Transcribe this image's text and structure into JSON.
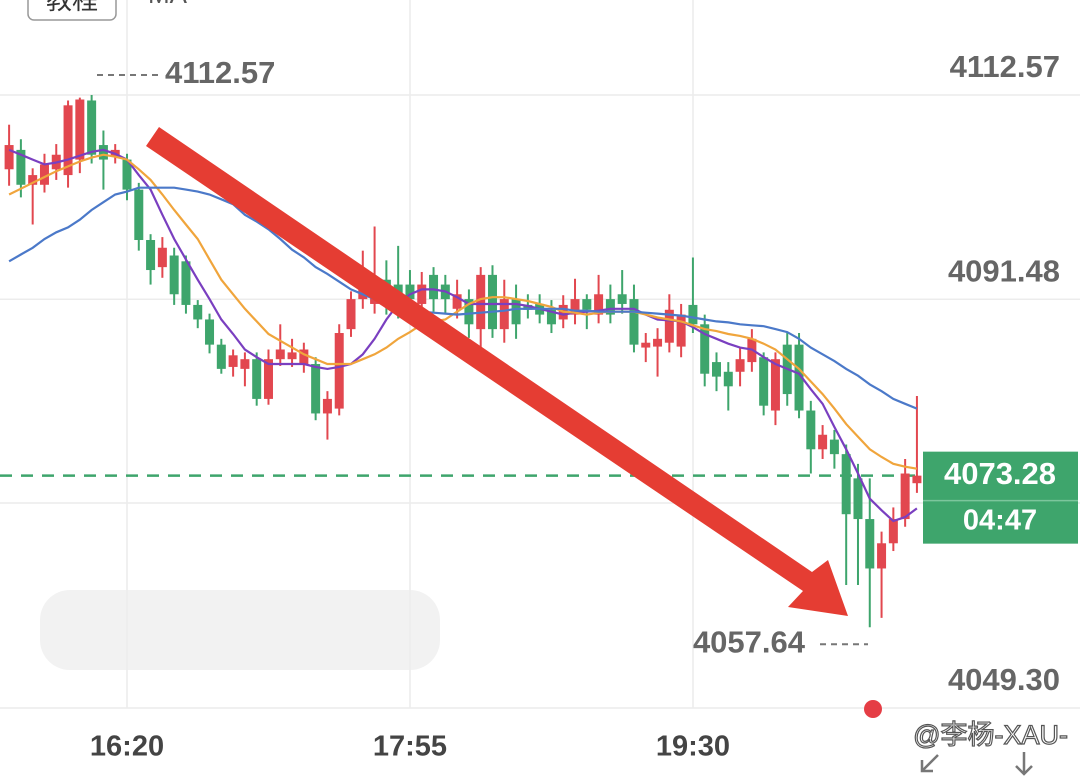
{
  "chart_data": {
    "type": "candlestick",
    "button": "教程",
    "indicator_label": "MA",
    "watermark": "@李杨-XAU-",
    "categories": [
      null,
      null,
      null,
      null,
      null,
      null,
      null,
      null,
      null,
      null,
      "16:20",
      null,
      null,
      null,
      null,
      null,
      null,
      null,
      null,
      null,
      null,
      null,
      null,
      null,
      null,
      null,
      null,
      null,
      null,
      null,
      null,
      null,
      null,
      null,
      "17:55",
      null,
      null,
      null,
      null,
      null,
      null,
      null,
      null,
      null,
      null,
      null,
      null,
      null,
      null,
      null,
      null,
      null,
      null,
      null,
      null,
      null,
      null,
      null,
      "19:30",
      null,
      null,
      null,
      null,
      null,
      null,
      null,
      null,
      null,
      null,
      null,
      null,
      null,
      null,
      null,
      null,
      null,
      null,
      null
    ],
    "open": [
      4104.9,
      4106.9,
      4103.3,
      4103.3,
      4104.9,
      4104.3,
      4105.9,
      4112.0,
      4107.4,
      4106.2,
      4105.9,
      4102.8,
      4097.6,
      4094.8,
      4096.0,
      4095.4,
      4090.9,
      4089.4,
      4086.8,
      4084.5,
      4084.3,
      4085.3,
      4081.2,
      4085.3,
      4085.3,
      4084.8,
      4084.8,
      4079.7,
      4080.2,
      4088.4,
      4091.5,
      4091.0,
      4093.5,
      4093.0,
      4093.0,
      4091.0,
      4094.0,
      4093.0,
      4090.5,
      4091.5,
      4088.4,
      4094.0,
      4088.4,
      4091.5,
      4090.9,
      4091.0,
      4090.4,
      4089.4,
      4089.9,
      4091.5,
      4089.9,
      4091.5,
      4092.0,
      4091.5,
      4086.5,
      4086.6,
      4087.0,
      4086.6,
      4090.9,
      4088.9,
      4085.0,
      4084.0,
      4084.0,
      4085.0,
      4085.5,
      4080.0,
      4086.8,
      4086.8,
      4080.0,
      4076.0,
      4077.0,
      4075.5,
      4073.0,
      4068.8,
      4063.7,
      4066.3,
      4068.8,
      4072.5
    ],
    "high": [
      4109.5,
      4108.0,
      4105.0,
      4106.5,
      4107.5,
      4112.0,
      4112.3,
      4112.57,
      4108.9,
      4107.5,
      4106.5,
      4103.5,
      4098.2,
      4097.9,
      4096.8,
      4096.0,
      4091.4,
      4090.0,
      4087.4,
      4086.3,
      4086.0,
      4086.0,
      4086.3,
      4088.9,
      4087.4,
      4087.0,
      4085.5,
      4082.0,
      4088.9,
      4092.3,
      4096.5,
      4099.0,
      4095.5,
      4097.0,
      4094.5,
      4094.3,
      4094.8,
      4094.0,
      4093.5,
      4092.5,
      4094.8,
      4095.0,
      4093.5,
      4093.0,
      4092.0,
      4092.0,
      4091.4,
      4091.9,
      4093.6,
      4092.0,
      4094.0,
      4093.0,
      4094.5,
      4093.0,
      4088.0,
      4088.5,
      4092.0,
      4091.0,
      4095.8,
      4089.9,
      4086.0,
      4085.0,
      4086.5,
      4088.4,
      4086.0,
      4086.0,
      4088.0,
      4088.0,
      4081.0,
      4078.5,
      4078.0,
      4076.5,
      4074.5,
      4073.0,
      4067.5,
      4070.0,
      4075.0,
      4081.5
    ],
    "low": [
      4103.2,
      4102.0,
      4099.2,
      4102.5,
      4103.8,
      4103.0,
      4104.5,
      4105.5,
      4102.8,
      4105.5,
      4101.7,
      4096.5,
      4093.0,
      4093.7,
      4090.9,
      4090.0,
      4088.5,
      4085.9,
      4083.8,
      4083.5,
      4082.5,
      4080.5,
      4080.6,
      4084.6,
      4084.5,
      4083.9,
      4079.0,
      4077.0,
      4079.5,
      4087.6,
      4090.5,
      4090.0,
      4089.9,
      4089.5,
      4089.9,
      4090.4,
      4090.2,
      4090.0,
      4089.5,
      4087.5,
      4086.5,
      4087.5,
      4087.0,
      4087.4,
      4089.5,
      4089.0,
      4088.0,
      4088.5,
      4088.9,
      4088.4,
      4089.0,
      4089.0,
      4090.0,
      4086.0,
      4085.0,
      4083.5,
      4086.0,
      4085.5,
      4088.0,
      4082.5,
      4082.0,
      4080.0,
      4082.5,
      4084.0,
      4079.5,
      4078.5,
      4080.5,
      4079.2,
      4073.5,
      4075.0,
      4074.0,
      4062.0,
      4062.0,
      4057.64,
      4058.6,
      4065.5,
      4068.0,
      4071.5
    ],
    "close": [
      4107.4,
      4103.3,
      4104.3,
      4105.4,
      4106.4,
      4111.5,
      4112.1,
      4106.4,
      4105.9,
      4106.9,
      4102.8,
      4097.6,
      4094.5,
      4096.8,
      4092.0,
      4090.9,
      4089.4,
      4086.8,
      4084.3,
      4085.7,
      4085.3,
      4081.2,
      4085.3,
      4086.3,
      4086.0,
      4086.3,
      4079.7,
      4081.2,
      4088.0,
      4091.5,
      4094.0,
      4093.5,
      4091.0,
      4090.4,
      4091.5,
      4093.0,
      4091.5,
      4091.5,
      4092.0,
      4088.9,
      4094.0,
      4088.4,
      4091.5,
      4088.9,
      4090.4,
      4089.9,
      4088.9,
      4090.9,
      4091.5,
      4090.4,
      4092.0,
      4089.9,
      4091.0,
      4086.8,
      4087.0,
      4087.4,
      4090.4,
      4089.9,
      4088.9,
      4083.8,
      4083.5,
      4082.5,
      4085.3,
      4087.4,
      4080.5,
      4085.3,
      4081.7,
      4080.0,
      4076.0,
      4077.5,
      4075.5,
      4069.3,
      4068.8,
      4063.7,
      4066.3,
      4068.8,
      4073.5,
      4073.28
    ],
    "up_color": "#e2474f",
    "down_color": "#3ea56c",
    "ma_lines": [
      {
        "color": "#7a3fc0",
        "values": [
          4106.9,
          4106.4,
          4105.9,
          4105.4,
          4105.6,
          4105.9,
          4106.3,
          4106.7,
          4106.9,
          4106.5,
          4105.9,
          4104.3,
          4102.8,
          4100.2,
          4097.7,
          4095.6,
          4093.5,
          4091.5,
          4089.4,
          4087.9,
          4086.3,
          4085.5,
          4084.8,
          4084.8,
          4084.8,
          4084.8,
          4084.5,
          4084.3,
          4084.5,
          4084.8,
          4085.8,
          4087.4,
          4089.4,
          4091.0,
          4092.0,
          4092.5,
          4092.5,
          4092.3,
          4091.7,
          4091.0,
          4091.0,
          4091.0,
          4091.0,
          4091.0,
          4090.8,
          4090.5,
          4090.2,
          4089.9,
          4090.1,
          4090.2,
          4090.3,
          4090.5,
          4090.5,
          4090.5,
          4089.9,
          4089.4,
          4089.3,
          4089.2,
          4088.6,
          4087.9,
          4087.4,
          4086.9,
          4086.5,
          4086.3,
          4085.5,
          4084.8,
          4084.3,
          4083.8,
          4082.2,
          4080.7,
          4078.3,
          4076.0,
          4073.5,
          4070.9,
          4069.7,
          4068.6,
          4069.0,
          4069.9
        ]
      },
      {
        "color": "#f0a53c",
        "values": [
          4102.3,
          4102.9,
          4103.5,
          4104.1,
          4104.7,
          4105.2,
          4105.7,
          4106.1,
          4106.4,
          4106.2,
          4105.9,
          4104.9,
          4103.8,
          4102.3,
          4100.7,
          4099.2,
          4097.7,
          4095.6,
          4093.5,
          4092.0,
          4090.5,
          4089.2,
          4087.9,
          4087.2,
          4086.5,
          4085.8,
          4085.3,
          4084.8,
          4084.8,
          4084.8,
          4085.3,
          4085.8,
          4086.5,
          4087.4,
          4088.1,
          4088.9,
          4089.2,
          4089.4,
          4090.2,
          4091.0,
          4091.5,
          4091.7,
          4091.7,
          4091.5,
          4091.3,
          4091.0,
          4090.7,
          4090.2,
          4090.1,
          4089.9,
          4090.1,
          4090.2,
          4090.2,
          4090.2,
          4089.9,
          4089.6,
          4089.4,
          4089.2,
          4088.8,
          4088.4,
          4088.2,
          4087.9,
          4087.7,
          4087.4,
          4086.9,
          4086.3,
          4085.3,
          4084.3,
          4083.0,
          4081.7,
          4080.2,
          4078.6,
          4077.3,
          4076.0,
          4075.2,
          4074.5,
          4074.2,
          4074.0
        ]
      },
      {
        "color": "#4b79c9",
        "values": [
          4095.4,
          4096.1,
          4096.8,
          4097.7,
          4098.4,
          4098.9,
          4099.7,
          4100.7,
          4101.5,
          4102.3,
          4102.6,
          4103.0,
          4103.0,
          4103.0,
          4103.0,
          4102.8,
          4102.6,
          4102.3,
          4101.8,
          4101.3,
          4100.2,
          4099.5,
          4098.7,
          4097.7,
          4096.6,
          4095.8,
          4094.8,
          4094.1,
          4093.3,
          4092.5,
          4092.0,
          4091.5,
          4091.0,
          4090.8,
          4090.6,
          4090.2,
          4090.1,
          4090.0,
          4089.9,
          4090.0,
          4090.1,
          4090.2,
          4090.3,
          4090.5,
          4090.5,
          4090.5,
          4090.5,
          4090.5,
          4090.3,
          4090.3,
          4090.2,
          4090.2,
          4090.2,
          4090.2,
          4090.1,
          4090.0,
          4089.9,
          4089.8,
          4089.6,
          4089.4,
          4089.2,
          4089.1,
          4088.9,
          4088.8,
          4088.7,
          4088.4,
          4088.1,
          4087.4,
          4086.5,
          4085.8,
          4085.1,
          4084.3,
          4083.6,
          4082.7,
          4082.0,
          4081.2,
          4080.7,
          4080.2
        ]
      }
    ],
    "ylim": [
      4049.3,
      4122.37
    ],
    "yticks": [
      4112.57,
      4091.48,
      {
        "value": 4049.3,
        "label": "4049.30"
      }
    ],
    "grid": true,
    "high_marker": 4112.57,
    "low_marker": 4057.64,
    "last_price": 4073.28,
    "countdown": "04:47"
  }
}
